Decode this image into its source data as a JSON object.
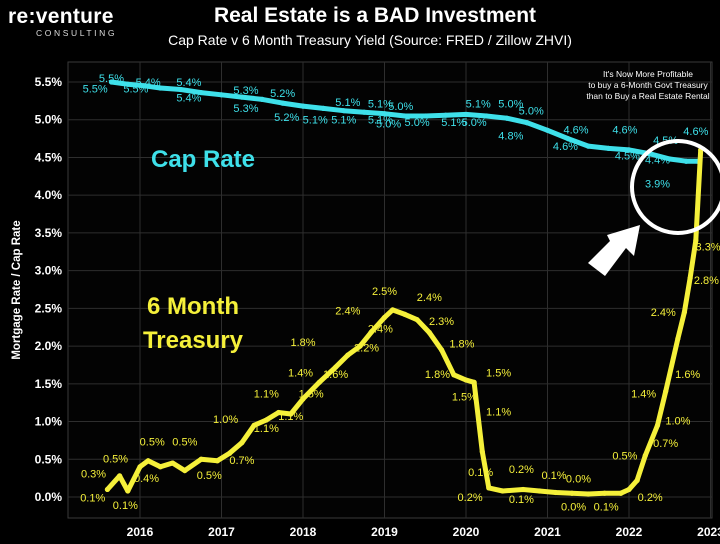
{
  "header": {
    "logo_main": "re:venture",
    "logo_sub": "CONSULTING",
    "title": "Real Estate is a BAD Investment",
    "subtitle": "Cap Rate v 6 Month Treasury Yield (Source: FRED / Zillow ZHVI)"
  },
  "colors": {
    "background": "#000000",
    "cap_rate": "#3ee0ea",
    "treasury": "#f5f03a",
    "axis_text": "#ffffff"
  },
  "chart_data": {
    "type": "line",
    "ylabel": "Mortgage Rate / Cap Rate",
    "xlim": [
      2015.25,
      2023.05
    ],
    "ylim": [
      0.0,
      5.5
    ],
    "yticks": [
      0.0,
      0.5,
      1.0,
      1.5,
      2.0,
      2.5,
      3.0,
      3.5,
      4.0,
      4.5,
      5.0,
      5.5
    ],
    "ytick_labels": [
      "0.0%",
      "0.5%",
      "1.0%",
      "1.5%",
      "2.0%",
      "2.5%",
      "3.0%",
      "3.5%",
      "4.0%",
      "4.5%",
      "5.0%",
      "5.5%"
    ],
    "xticks": [
      2016,
      2017,
      2018,
      2019,
      2020,
      2021,
      2022,
      2023
    ],
    "xtick_labels": [
      "2016",
      "2017",
      "2018",
      "2019",
      "2020",
      "2021",
      "2022",
      "2023"
    ],
    "grid": true,
    "series": [
      {
        "name": "Cap Rate",
        "color": "#3ee0ea",
        "x": [
          2015.65,
          2015.85,
          2016.05,
          2016.25,
          2016.5,
          2016.75,
          2017.0,
          2017.25,
          2017.5,
          2017.75,
          2018.0,
          2018.25,
          2018.5,
          2018.75,
          2019.0,
          2019.25,
          2019.5,
          2019.75,
          2020.0,
          2020.25,
          2020.5,
          2020.75,
          2021.0,
          2021.25,
          2021.5,
          2021.75,
          2022.0,
          2022.25,
          2022.5,
          2022.7,
          2022.85
        ],
        "y": [
          5.5,
          5.47,
          5.45,
          5.42,
          5.4,
          5.36,
          5.33,
          5.3,
          5.27,
          5.22,
          5.18,
          5.15,
          5.12,
          5.1,
          5.08,
          5.05,
          5.05,
          5.06,
          5.07,
          5.05,
          5.02,
          4.96,
          4.86,
          4.75,
          4.65,
          4.62,
          4.6,
          4.55,
          4.48,
          4.45,
          4.45
        ]
      },
      {
        "name": "6 Month Treasury",
        "color": "#f5f03a",
        "x": [
          2015.6,
          2015.75,
          2015.85,
          2016.0,
          2016.1,
          2016.25,
          2016.4,
          2016.55,
          2016.75,
          2016.95,
          2017.1,
          2017.25,
          2017.4,
          2017.55,
          2017.7,
          2017.85,
          2018.0,
          2018.2,
          2018.4,
          2018.55,
          2018.7,
          2018.85,
          2019.0,
          2019.1,
          2019.25,
          2019.4,
          2019.55,
          2019.7,
          2019.85,
          2020.0,
          2020.1,
          2020.2,
          2020.28,
          2020.45,
          2020.7,
          2020.9,
          2021.1,
          2021.3,
          2021.5,
          2021.7,
          2021.9,
          2022.0,
          2022.1,
          2022.2,
          2022.35,
          2022.45,
          2022.6,
          2022.68,
          2022.75,
          2022.82,
          2022.88
        ],
        "y": [
          0.1,
          0.28,
          0.08,
          0.4,
          0.48,
          0.4,
          0.45,
          0.35,
          0.5,
          0.48,
          0.58,
          0.72,
          0.95,
          1.02,
          1.12,
          1.1,
          1.3,
          1.52,
          1.72,
          1.88,
          2.0,
          2.2,
          2.38,
          2.48,
          2.42,
          2.35,
          2.18,
          1.95,
          1.62,
          1.55,
          1.52,
          0.6,
          0.12,
          0.08,
          0.1,
          0.08,
          0.06,
          0.05,
          0.04,
          0.05,
          0.05,
          0.1,
          0.22,
          0.55,
          0.95,
          1.4,
          2.1,
          2.45,
          2.9,
          3.4,
          4.6
        ]
      }
    ],
    "cap_rate_point_labels": [
      {
        "x": 2015.65,
        "y": 5.5,
        "text": "5.5%"
      },
      {
        "x": 2015.45,
        "y": 5.36,
        "text": "5.5%"
      },
      {
        "x": 2015.95,
        "y": 5.36,
        "text": "5.5%"
      },
      {
        "x": 2016.1,
        "y": 5.45,
        "text": "5.4%"
      },
      {
        "x": 2016.6,
        "y": 5.45,
        "text": "5.4%"
      },
      {
        "x": 2016.6,
        "y": 5.24,
        "text": "5.4%"
      },
      {
        "x": 2017.3,
        "y": 5.34,
        "text": "5.3%"
      },
      {
        "x": 2017.3,
        "y": 5.1,
        "text": "5.3%"
      },
      {
        "x": 2017.75,
        "y": 5.3,
        "text": "5.2%"
      },
      {
        "x": 2017.8,
        "y": 4.98,
        "text": "5.2%"
      },
      {
        "x": 2018.15,
        "y": 4.95,
        "text": "5.1%"
      },
      {
        "x": 2018.55,
        "y": 5.18,
        "text": "5.1%"
      },
      {
        "x": 2018.5,
        "y": 4.95,
        "text": "5.1%"
      },
      {
        "x": 2018.95,
        "y": 5.16,
        "text": "5.1%"
      },
      {
        "x": 2018.95,
        "y": 4.95,
        "text": "5.1%"
      },
      {
        "x": 2019.2,
        "y": 5.13,
        "text": "5.0%"
      },
      {
        "x": 2019.05,
        "y": 4.9,
        "text": "5.0%"
      },
      {
        "x": 2019.4,
        "y": 4.92,
        "text": "5.0%"
      },
      {
        "x": 2019.85,
        "y": 4.92,
        "text": "5.1%"
      },
      {
        "x": 2020.15,
        "y": 5.16,
        "text": "5.1%"
      },
      {
        "x": 2020.55,
        "y": 5.16,
        "text": "5.0%"
      },
      {
        "x": 2020.1,
        "y": 4.92,
        "text": "5.0%"
      },
      {
        "x": 2020.8,
        "y": 5.07,
        "text": "5.0%"
      },
      {
        "x": 2020.55,
        "y": 4.74,
        "text": "4.8%"
      },
      {
        "x": 2021.35,
        "y": 4.82,
        "text": "4.6%"
      },
      {
        "x": 2021.22,
        "y": 4.6,
        "text": "4.6%"
      },
      {
        "x": 2021.95,
        "y": 4.82,
        "text": "4.6%"
      },
      {
        "x": 2022.45,
        "y": 4.68,
        "text": "4.5%"
      },
      {
        "x": 2021.98,
        "y": 4.47,
        "text": "4.5%"
      },
      {
        "x": 2022.35,
        "y": 4.42,
        "text": "4.4%"
      },
      {
        "x": 2022.82,
        "y": 4.8,
        "text": "4.6%"
      },
      {
        "x": 2022.35,
        "y": 4.1,
        "text": "3.9%"
      }
    ],
    "treasury_point_labels": [
      {
        "x": 2015.43,
        "y": 0.26,
        "text": "0.3%"
      },
      {
        "x": 2015.7,
        "y": 0.46,
        "text": "0.5%"
      },
      {
        "x": 2015.42,
        "y": -0.06,
        "text": "0.1%"
      },
      {
        "x": 2015.82,
        "y": -0.16,
        "text": "0.1%"
      },
      {
        "x": 2016.15,
        "y": 0.68,
        "text": "0.5%"
      },
      {
        "x": 2016.08,
        "y": 0.2,
        "text": "0.4%"
      },
      {
        "x": 2016.55,
        "y": 0.68,
        "text": "0.5%"
      },
      {
        "x": 2016.85,
        "y": 0.24,
        "text": "0.5%"
      },
      {
        "x": 2017.05,
        "y": 0.98,
        "text": "1.0%"
      },
      {
        "x": 2017.25,
        "y": 0.44,
        "text": "0.7%"
      },
      {
        "x": 2017.55,
        "y": 1.32,
        "text": "1.1%"
      },
      {
        "x": 2017.55,
        "y": 0.86,
        "text": "1.1%"
      },
      {
        "x": 2017.85,
        "y": 1.02,
        "text": "1.1%"
      },
      {
        "x": 2017.97,
        "y": 1.6,
        "text": "1.4%"
      },
      {
        "x": 2018.1,
        "y": 1.32,
        "text": "1.5%"
      },
      {
        "x": 2018.0,
        "y": 2.0,
        "text": "1.8%"
      },
      {
        "x": 2018.4,
        "y": 1.58,
        "text": "1.6%"
      },
      {
        "x": 2018.55,
        "y": 2.42,
        "text": "2.4%"
      },
      {
        "x": 2018.78,
        "y": 1.93,
        "text": "2.2%"
      },
      {
        "x": 2019.0,
        "y": 2.68,
        "text": "2.5%"
      },
      {
        "x": 2018.95,
        "y": 2.18,
        "text": "2.4%"
      },
      {
        "x": 2019.55,
        "y": 2.6,
        "text": "2.4%"
      },
      {
        "x": 2019.7,
        "y": 2.28,
        "text": "2.3%"
      },
      {
        "x": 2019.95,
        "y": 1.98,
        "text": "1.8%"
      },
      {
        "x": 2019.65,
        "y": 1.58,
        "text": "1.8%"
      },
      {
        "x": 2019.98,
        "y": 1.28,
        "text": "1.5%"
      },
      {
        "x": 2020.4,
        "y": 1.6,
        "text": "1.5%"
      },
      {
        "x": 2020.4,
        "y": 1.08,
        "text": "1.1%"
      },
      {
        "x": 2020.18,
        "y": 0.28,
        "text": "0.1%"
      },
      {
        "x": 2020.05,
        "y": -0.05,
        "text": "0.2%"
      },
      {
        "x": 2020.68,
        "y": 0.32,
        "text": "0.2%"
      },
      {
        "x": 2020.68,
        "y": -0.08,
        "text": "0.1%"
      },
      {
        "x": 2021.08,
        "y": 0.24,
        "text": "0.1%"
      },
      {
        "x": 2021.38,
        "y": 0.19,
        "text": "0.0%"
      },
      {
        "x": 2021.32,
        "y": -0.18,
        "text": "0.0%"
      },
      {
        "x": 2021.72,
        "y": -0.18,
        "text": "0.1%"
      },
      {
        "x": 2021.95,
        "y": 0.5,
        "text": "0.5%"
      },
      {
        "x": 2022.26,
        "y": -0.05,
        "text": "0.2%"
      },
      {
        "x": 2022.45,
        "y": 0.66,
        "text": "0.7%"
      },
      {
        "x": 2022.18,
        "y": 1.32,
        "text": "1.4%"
      },
      {
        "x": 2022.6,
        "y": 0.96,
        "text": "1.0%"
      },
      {
        "x": 2022.72,
        "y": 1.58,
        "text": "1.6%"
      },
      {
        "x": 2022.42,
        "y": 2.4,
        "text": "2.4%"
      },
      {
        "x": 2022.95,
        "y": 2.82,
        "text": "2.8%"
      },
      {
        "x": 2022.97,
        "y": 3.27,
        "text": "3.3%"
      }
    ],
    "annotations": {
      "cap_rate_label": "Cap Rate",
      "treasury_label_line1": "6 Month",
      "treasury_label_line2": "Treasury",
      "callout_line1": "It's Now More Profitable",
      "callout_line2": "to buy a 6-Month Govt Treasury",
      "callout_line3": "than to Buy a Real Estate Rental"
    }
  }
}
